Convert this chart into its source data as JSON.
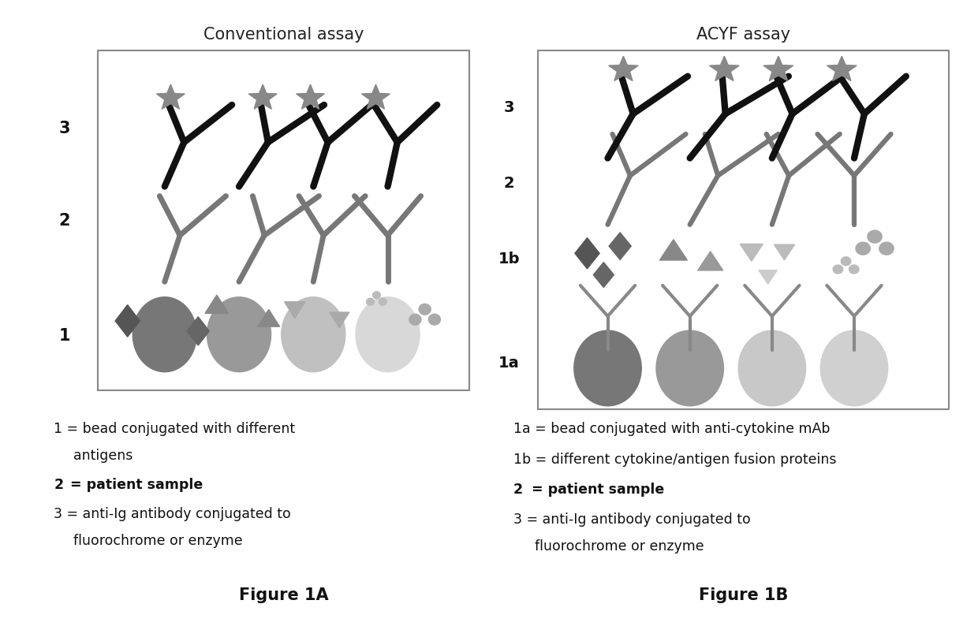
{
  "title_left": "Conventional assay",
  "title_right": "ACYF assay",
  "fig_label_left": "Figure 1A",
  "fig_label_right": "Figure 1B",
  "bg_color": "#ffffff",
  "bead_colors_left": [
    "#777777",
    "#999999",
    "#c0c0c0",
    "#d8d8d8"
  ],
  "bead_colors_right": [
    "#777777",
    "#999999",
    "#c8c8c8",
    "#d0d0d0"
  ],
  "antigen_colors_left": [
    "#555555",
    "#888888",
    "#aaaaaa",
    "#aaaaaa"
  ],
  "star_color": "#999999",
  "black_ab_color": "#111111",
  "gray_ab_color": "#777777",
  "label_color": "#111111"
}
